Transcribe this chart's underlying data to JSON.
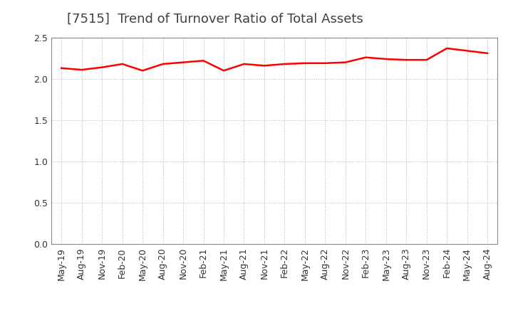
{
  "title": "[7515]  Trend of Turnover Ratio of Total Assets",
  "line_color": "#FF0000",
  "background_color": "#FFFFFF",
  "grid_color": "#AAAAAA",
  "title_color": "#404040",
  "ylim": [
    0.0,
    2.5
  ],
  "yticks": [
    0.0,
    0.5,
    1.0,
    1.5,
    2.0,
    2.5
  ],
  "x_labels": [
    "May-19",
    "Aug-19",
    "Nov-19",
    "Feb-20",
    "May-20",
    "Aug-20",
    "Nov-20",
    "Feb-21",
    "May-21",
    "Aug-21",
    "Nov-21",
    "Feb-22",
    "May-22",
    "Aug-22",
    "Nov-22",
    "Feb-23",
    "May-23",
    "Aug-23",
    "Nov-23",
    "Feb-24",
    "May-24",
    "Aug-24"
  ],
  "values": [
    2.13,
    2.11,
    2.14,
    2.18,
    2.1,
    2.18,
    2.2,
    2.22,
    2.1,
    2.18,
    2.16,
    2.18,
    2.19,
    2.19,
    2.2,
    2.26,
    2.24,
    2.23,
    2.23,
    2.37,
    2.34,
    2.31
  ],
  "title_fontsize": 13,
  "tick_fontsize": 9,
  "line_width": 1.8
}
